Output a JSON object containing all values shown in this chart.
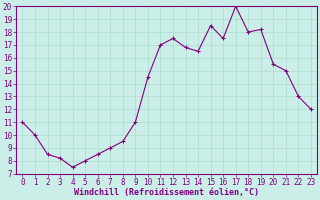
{
  "x": [
    0,
    1,
    2,
    3,
    4,
    5,
    6,
    7,
    8,
    9,
    10,
    11,
    12,
    13,
    14,
    15,
    16,
    17,
    18,
    19,
    20,
    21,
    22,
    23
  ],
  "y": [
    11,
    10,
    8.5,
    8.2,
    7.5,
    8.0,
    8.5,
    9.0,
    9.5,
    11,
    14.5,
    17.0,
    17.5,
    16.8,
    16.5,
    18.5,
    17.5,
    20,
    18,
    18.2,
    15.5,
    15.0,
    13,
    12
  ],
  "line_color": "#800080",
  "marker_color": "#800080",
  "bg_color": "#cceee8",
  "grid_color": "#aaddcc",
  "xlabel": "Windchill (Refroidissement éolien,°C)",
  "xlabel_color": "#800080",
  "tick_color": "#800080",
  "spine_color": "#800080",
  "ylim": [
    7,
    20
  ],
  "xlim": [
    -0.5,
    23.5
  ],
  "yticks": [
    7,
    8,
    9,
    10,
    11,
    12,
    13,
    14,
    15,
    16,
    17,
    18,
    19,
    20
  ],
  "xticks": [
    0,
    1,
    2,
    3,
    4,
    5,
    6,
    7,
    8,
    9,
    10,
    11,
    12,
    13,
    14,
    15,
    16,
    17,
    18,
    19,
    20,
    21,
    22,
    23
  ],
  "tick_fontsize": 5.5,
  "xlabel_fontsize": 6.0
}
